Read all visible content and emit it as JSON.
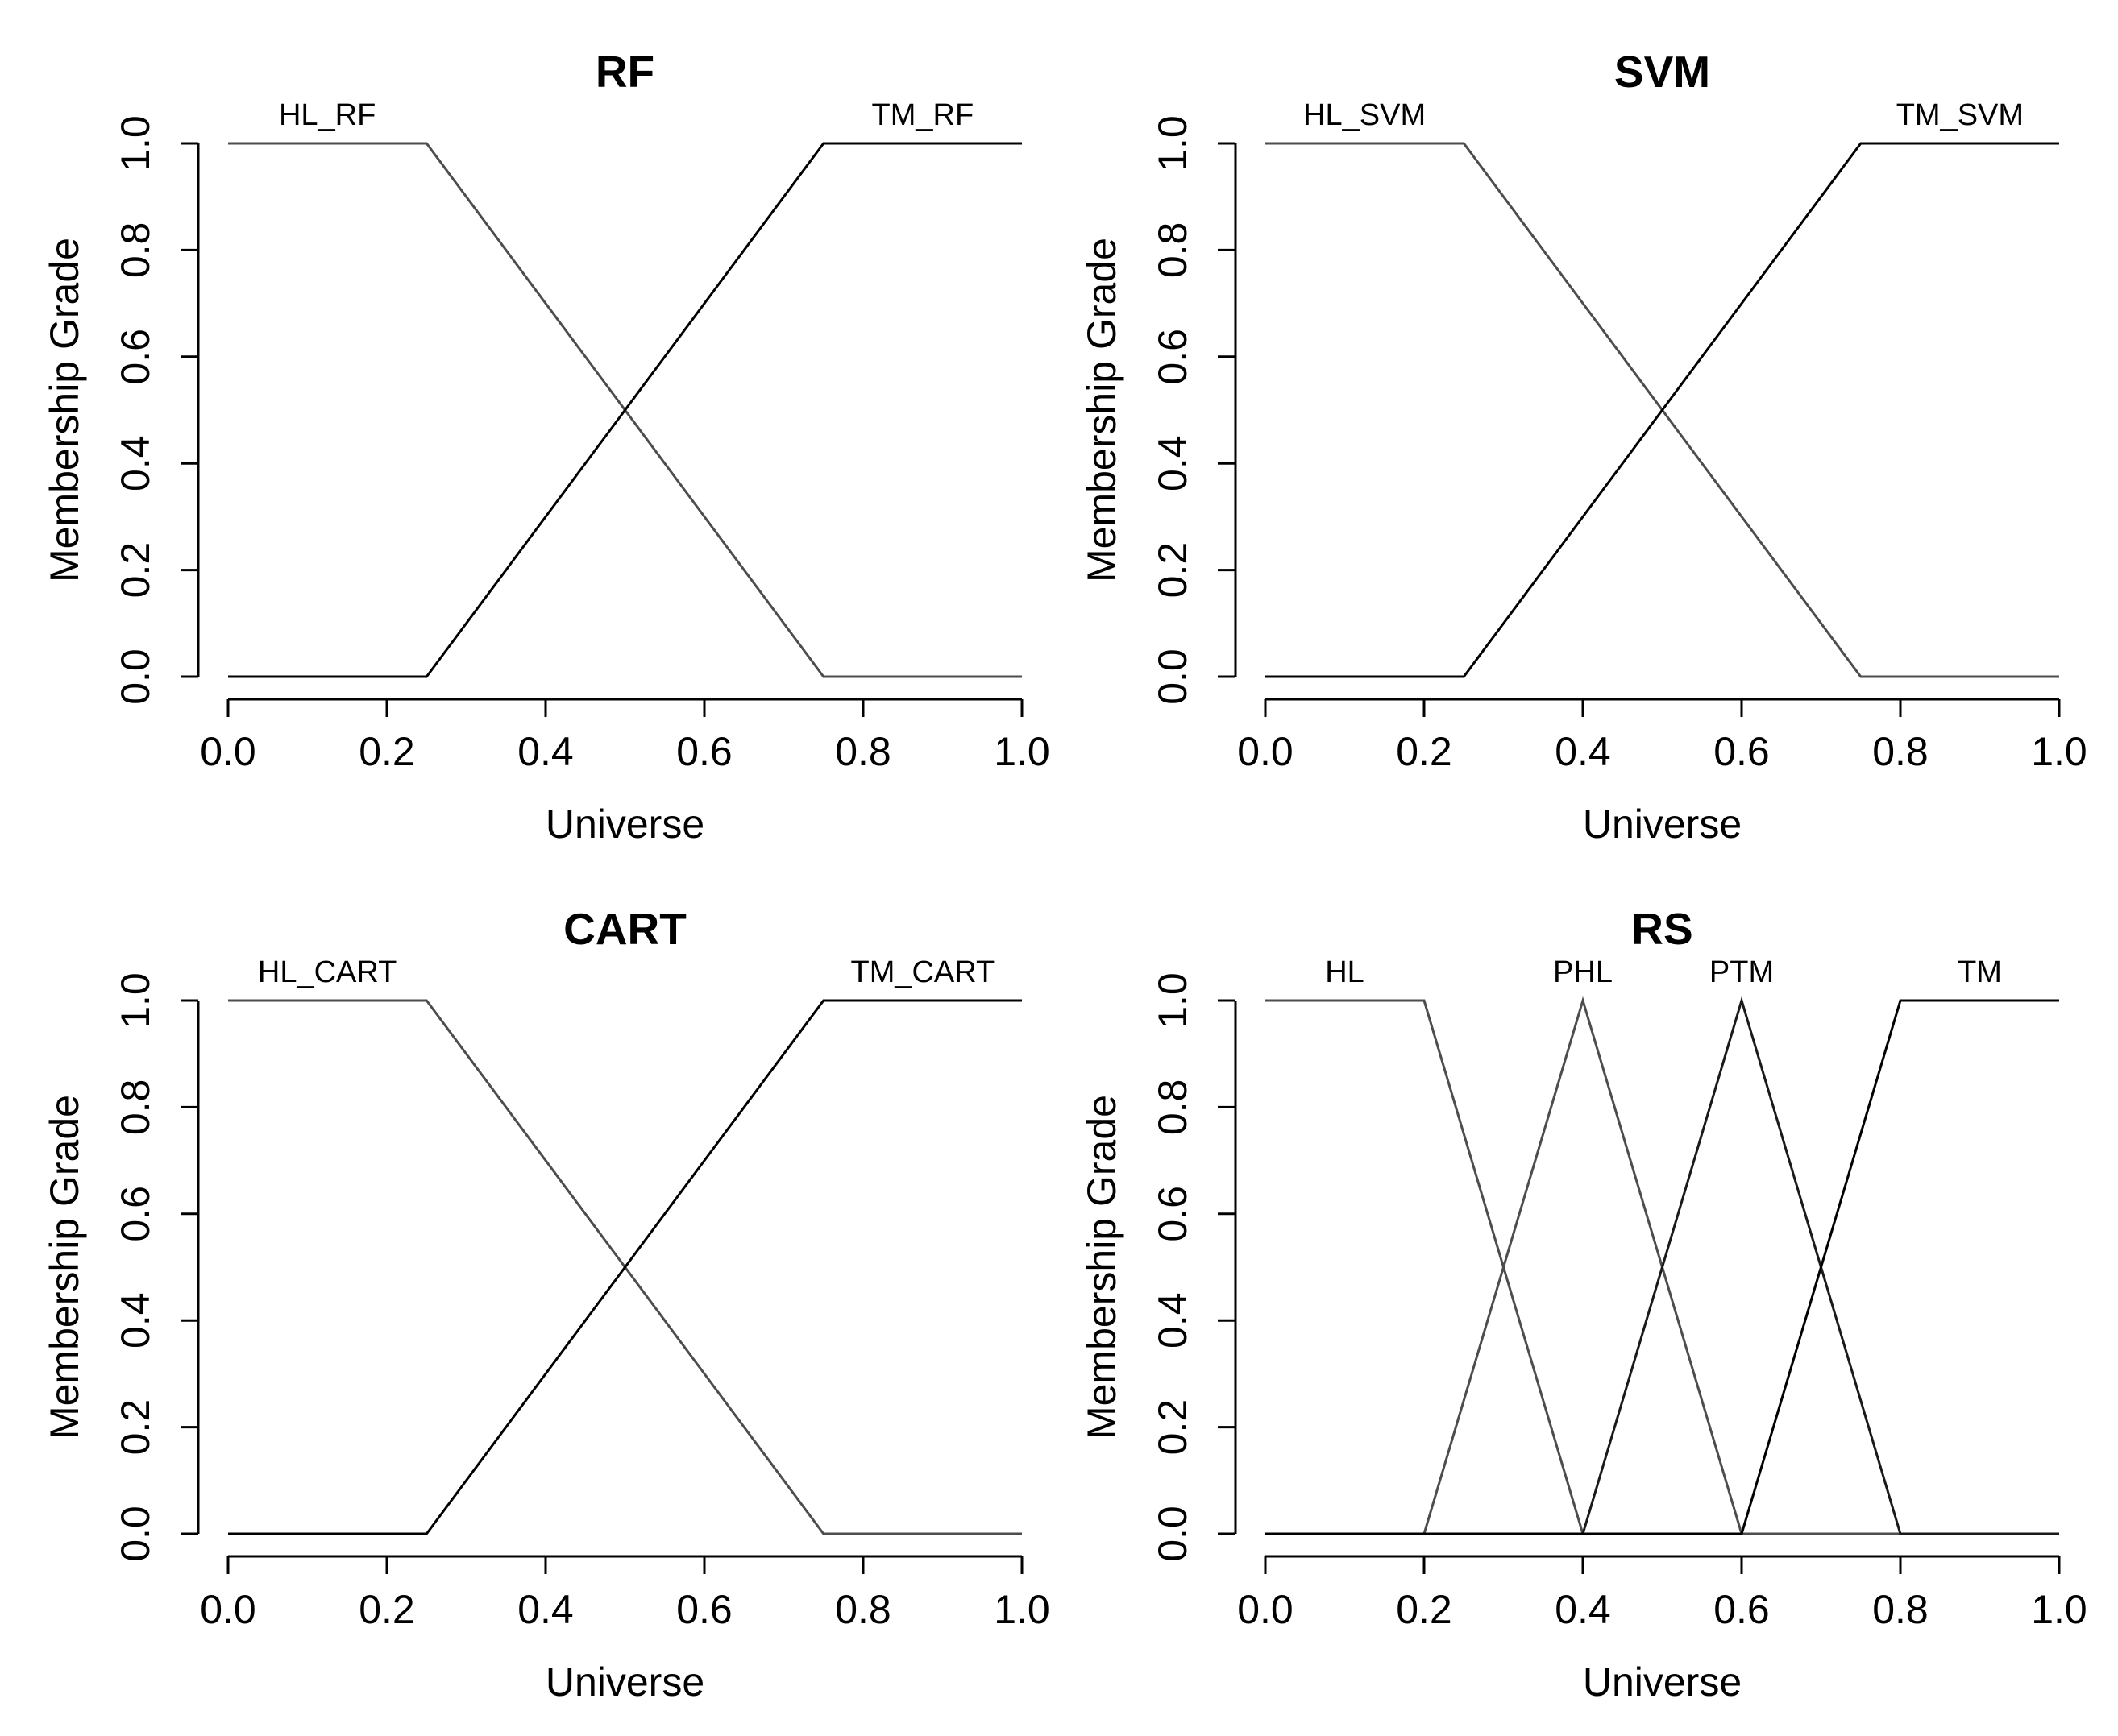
{
  "figure": {
    "background": "#ffffff",
    "text_color": "#000000"
  },
  "chart_data": [
    {
      "id": "rf",
      "type": "line",
      "title": "RF",
      "xlabel": "Universe",
      "ylabel": "Membership Grade",
      "xlim": [
        0,
        1
      ],
      "ylim": [
        0,
        1
      ],
      "xticks": [
        "0.0",
        "0.2",
        "0.4",
        "0.6",
        "0.8",
        "1.0"
      ],
      "yticks": [
        "0.0",
        "0.2",
        "0.4",
        "0.6",
        "0.8",
        "1.0"
      ],
      "grid": false,
      "series": [
        {
          "name": "HL_RF",
          "label_x": 0.125,
          "color": "#4d4d4d",
          "x": [
            0,
            0.25,
            0.75,
            1
          ],
          "y": [
            1,
            1,
            0,
            0
          ]
        },
        {
          "name": "TM_RF",
          "label_x": 0.875,
          "color": "#000000",
          "x": [
            0,
            0.25,
            0.75,
            1
          ],
          "y": [
            0,
            0,
            1,
            1
          ]
        }
      ]
    },
    {
      "id": "svm",
      "type": "line",
      "title": "SVM",
      "xlabel": "Universe",
      "ylabel": "Membership Grade",
      "xlim": [
        0,
        1
      ],
      "ylim": [
        0,
        1
      ],
      "xticks": [
        "0.0",
        "0.2",
        "0.4",
        "0.6",
        "0.8",
        "1.0"
      ],
      "yticks": [
        "0.0",
        "0.2",
        "0.4",
        "0.6",
        "0.8",
        "1.0"
      ],
      "grid": false,
      "series": [
        {
          "name": "HL_SVM",
          "label_x": 0.125,
          "color": "#4d4d4d",
          "x": [
            0,
            0.25,
            0.75,
            1
          ],
          "y": [
            1,
            1,
            0,
            0
          ]
        },
        {
          "name": "TM_SVM",
          "label_x": 0.875,
          "color": "#000000",
          "x": [
            0,
            0.25,
            0.75,
            1
          ],
          "y": [
            0,
            0,
            1,
            1
          ]
        }
      ]
    },
    {
      "id": "cart",
      "type": "line",
      "title": "CART",
      "xlabel": "Universe",
      "ylabel": "Membership Grade",
      "xlim": [
        0,
        1
      ],
      "ylim": [
        0,
        1
      ],
      "xticks": [
        "0.0",
        "0.2",
        "0.4",
        "0.6",
        "0.8",
        "1.0"
      ],
      "yticks": [
        "0.0",
        "0.2",
        "0.4",
        "0.6",
        "0.8",
        "1.0"
      ],
      "grid": false,
      "series": [
        {
          "name": "HL_CART",
          "label_x": 0.125,
          "color": "#4d4d4d",
          "x": [
            0,
            0.25,
            0.75,
            1
          ],
          "y": [
            1,
            1,
            0,
            0
          ]
        },
        {
          "name": "TM_CART",
          "label_x": 0.875,
          "color": "#000000",
          "x": [
            0,
            0.25,
            0.75,
            1
          ],
          "y": [
            0,
            0,
            1,
            1
          ]
        }
      ]
    },
    {
      "id": "rs",
      "type": "line",
      "title": "RS",
      "xlabel": "Universe",
      "ylabel": "Membership Grade",
      "xlim": [
        0,
        1
      ],
      "ylim": [
        0,
        1
      ],
      "xticks": [
        "0.0",
        "0.2",
        "0.4",
        "0.6",
        "0.8",
        "1.0"
      ],
      "yticks": [
        "0.0",
        "0.2",
        "0.4",
        "0.6",
        "0.8",
        "1.0"
      ],
      "grid": false,
      "series": [
        {
          "name": "HL",
          "label_x": 0.1,
          "color": "#4d4d4d",
          "x": [
            0,
            0.2,
            0.4,
            1
          ],
          "y": [
            1,
            1,
            0,
            0
          ]
        },
        {
          "name": "PHL",
          "label_x": 0.4,
          "color": "#4d4d4d",
          "x": [
            0,
            0.2,
            0.4,
            0.6,
            1
          ],
          "y": [
            0,
            0,
            1,
            0,
            0
          ]
        },
        {
          "name": "PTM",
          "label_x": 0.6,
          "color": "#1a1a1a",
          "x": [
            0,
            0.4,
            0.6,
            0.8,
            1
          ],
          "y": [
            0,
            0,
            1,
            0,
            0
          ]
        },
        {
          "name": "TM",
          "label_x": 0.9,
          "color": "#000000",
          "x": [
            0,
            0.6,
            0.8,
            1
          ],
          "y": [
            0,
            0,
            1,
            1
          ]
        }
      ]
    }
  ]
}
